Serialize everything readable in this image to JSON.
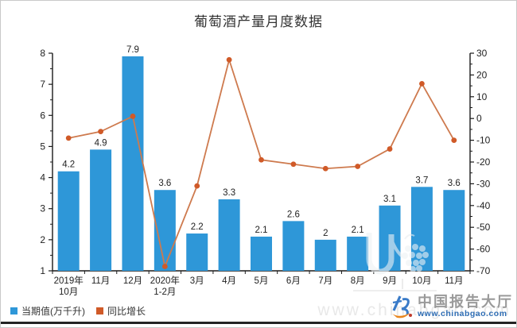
{
  "title": "葡萄酒产量月度数据",
  "chart_data": {
    "type": "bar",
    "subtype": "combo-bar-line-dual-axis",
    "title": "葡萄酒产量月度数据",
    "categories": [
      [
        "2019年",
        "10月"
      ],
      [
        "11月"
      ],
      [
        "12月"
      ],
      [
        "2020年",
        "1-2月"
      ],
      [
        "3月"
      ],
      [
        "4月"
      ],
      [
        "5月"
      ],
      [
        "6月"
      ],
      [
        "7月"
      ],
      [
        "8月"
      ],
      [
        "9月"
      ],
      [
        "10月"
      ],
      [
        "11月"
      ]
    ],
    "series": [
      {
        "name": "当期值(万千升)",
        "type": "bar",
        "axis": "left",
        "color": "#2E97D8",
        "values": [
          4.2,
          4.9,
          7.9,
          3.6,
          2.2,
          3.3,
          2.1,
          2.6,
          2,
          2.1,
          3.1,
          3.7,
          3.6
        ],
        "labels": [
          "4.2",
          "4.9",
          "7.9",
          "3.6",
          "2.2",
          "3.3",
          "2.1",
          "2.6",
          "2",
          "2.1",
          "3.1",
          "3.7",
          "3.6"
        ]
      },
      {
        "name": "同比增长",
        "type": "line",
        "axis": "right",
        "color": "#CE7A4E",
        "marker_color": "#D05A28",
        "values": [
          -9,
          -6,
          1,
          -68,
          -31,
          27,
          -19,
          -21,
          -23,
          -22,
          -14,
          16,
          -10
        ]
      }
    ],
    "left_axis": {
      "min": 1,
      "max": 8,
      "step": 1,
      "minor_step": 0.5
    },
    "right_axis": {
      "min": -70,
      "max": 30,
      "step": 10,
      "minor_step": 5
    },
    "grid": false,
    "legend_position": "bottom-left"
  },
  "legend": {
    "items": [
      {
        "label": "当期值(万千升)",
        "color": "#2E97D8"
      },
      {
        "label": "同比增长",
        "color": "#D05A28"
      }
    ]
  },
  "watermarks": {
    "site_name": "中国报告大厅",
    "site_url": "www.chinabgao.com",
    "faint_text": "www.chinabgao.com",
    "center_mark": "grapes-logo"
  },
  "colors": {
    "bar": "#2E97D8",
    "line": "#CE7A4E",
    "marker": "#D05A28",
    "axis": "#1a1a1a"
  }
}
